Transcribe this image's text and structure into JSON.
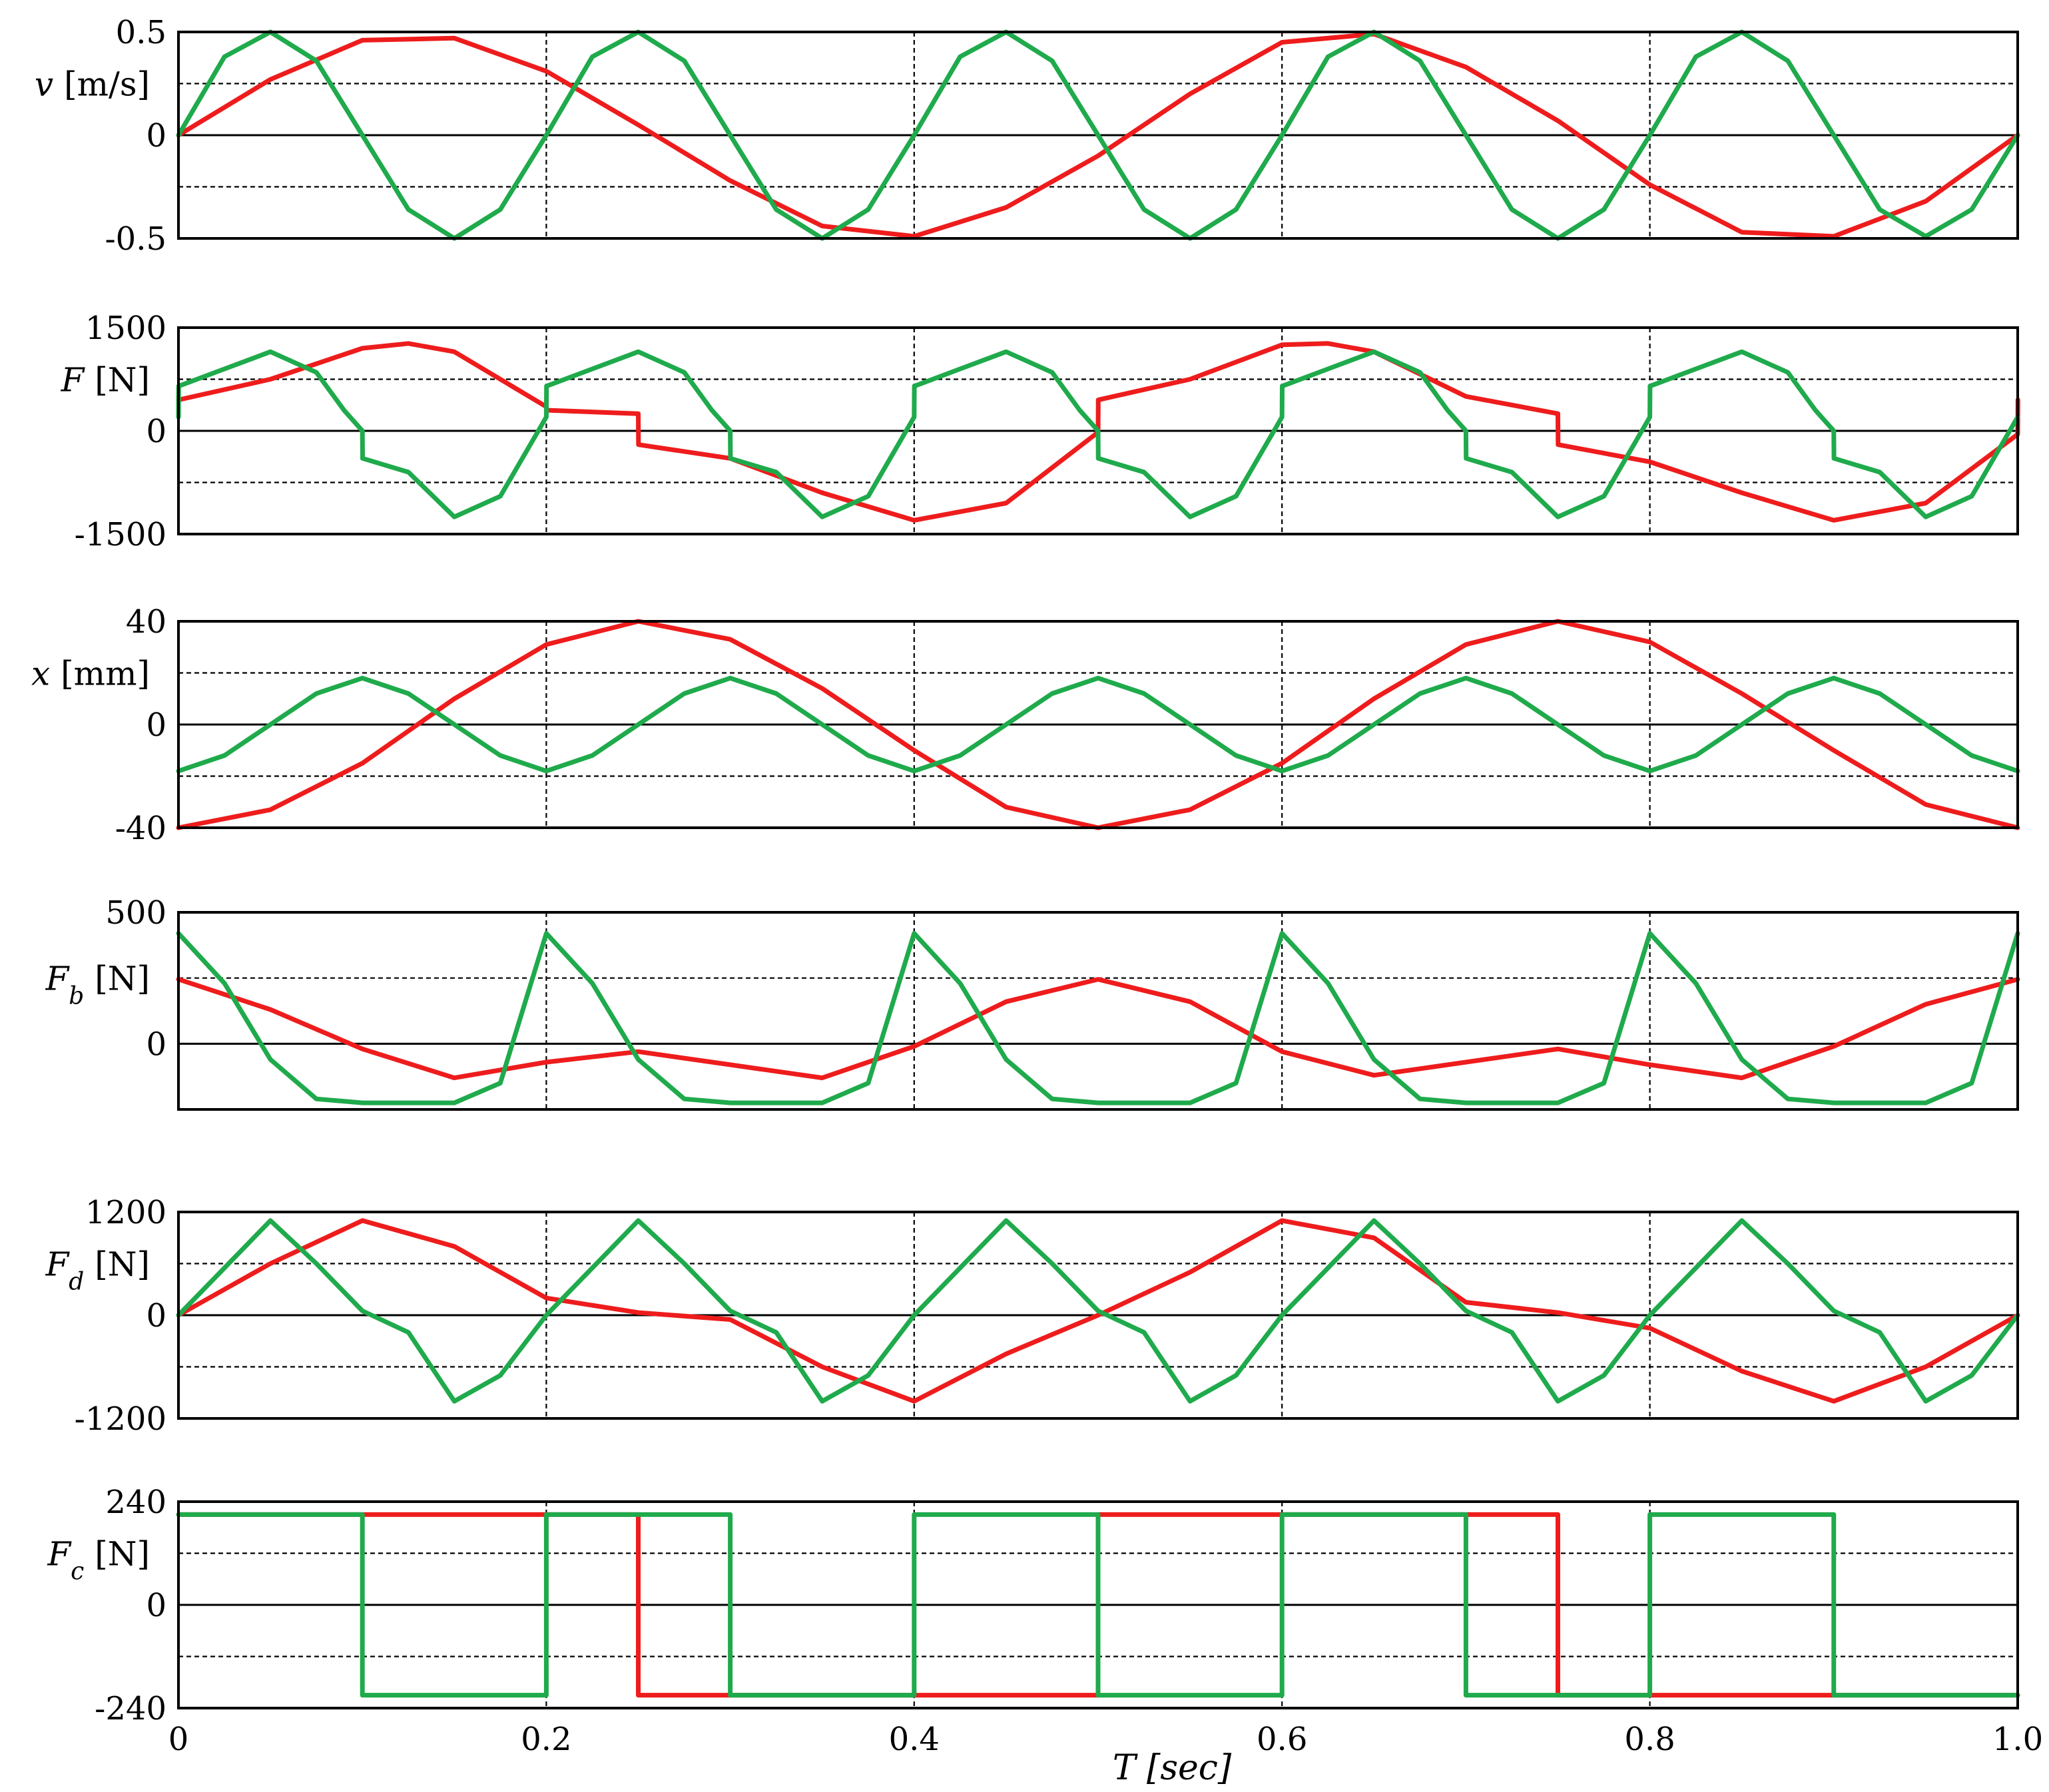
{
  "chart_data": [
    {
      "type": "line",
      "id": "v",
      "ylabel_var": "v",
      "ylabel_sub": "",
      "ylabel_unit": "[m/s]",
      "ylim": [
        -0.5,
        0.5
      ],
      "ytick_labels": [
        "0.5",
        "0",
        "-0.5"
      ],
      "ytick_values": [
        0.5,
        0,
        -0.5
      ],
      "dashed_levels": [
        0.25,
        -0.25
      ],
      "series": [
        {
          "color": "#ee1c1c",
          "x": [
            0,
            0.05,
            0.1,
            0.15,
            0.2,
            0.25,
            0.3,
            0.35,
            0.4,
            0.45,
            0.5,
            0.55,
            0.6,
            0.65,
            0.7,
            0.75,
            0.8,
            0.85,
            0.9,
            0.95,
            1.0
          ],
          "y": [
            0,
            0.27,
            0.46,
            0.47,
            0.31,
            0.05,
            -0.22,
            -0.44,
            -0.49,
            -0.35,
            -0.1,
            0.2,
            0.45,
            0.49,
            0.33,
            0.07,
            -0.24,
            -0.47,
            -0.49,
            -0.32,
            0
          ]
        },
        {
          "color": "#1faa4c",
          "x": [
            0,
            0.025,
            0.05,
            0.075,
            0.1,
            0.125,
            0.15,
            0.175,
            0.2,
            0.225,
            0.25,
            0.275,
            0.3,
            0.325,
            0.35,
            0.375,
            0.4,
            0.425,
            0.45,
            0.475,
            0.5,
            0.525,
            0.55,
            0.575,
            0.6,
            0.625,
            0.65,
            0.675,
            0.7,
            0.725,
            0.75,
            0.775,
            0.8,
            0.825,
            0.85,
            0.875,
            0.9,
            0.925,
            0.95,
            0.975,
            1.0
          ],
          "y": [
            0,
            0.38,
            0.5,
            0.36,
            0,
            -0.36,
            -0.5,
            -0.36,
            0,
            0.38,
            0.5,
            0.36,
            0,
            -0.36,
            -0.5,
            -0.36,
            0,
            0.38,
            0.5,
            0.36,
            0,
            -0.36,
            -0.5,
            -0.36,
            0,
            0.38,
            0.5,
            0.36,
            0,
            -0.36,
            -0.5,
            -0.36,
            0,
            0.38,
            0.5,
            0.36,
            0,
            -0.36,
            -0.49,
            -0.36,
            0
          ]
        }
      ]
    },
    {
      "type": "line",
      "id": "F",
      "ylabel_var": "F",
      "ylabel_sub": "",
      "ylabel_unit": "[N]",
      "ylim": [
        -1500,
        1500
      ],
      "ytick_labels": [
        "1500",
        "0",
        "-1500"
      ],
      "ytick_values": [
        1500,
        0,
        -1500
      ],
      "dashed_levels": [
        750,
        -750
      ],
      "series": [
        {
          "color": "#ee1c1c",
          "x": [
            0,
            0.05,
            0.1,
            0.125,
            0.15,
            0.2,
            0.2001,
            0.25,
            0.2501,
            0.3,
            0.35,
            0.4,
            0.45,
            0.5,
            0.5001,
            0.55,
            0.6,
            0.625,
            0.65,
            0.7,
            0.75,
            0.7501,
            0.8,
            0.85,
            0.9,
            0.95,
            1.0,
            1.0001
          ],
          "y": [
            450,
            750,
            1200,
            1270,
            1150,
            350,
            300,
            250,
            -200,
            -400,
            -900,
            -1300,
            -1050,
            -20,
            450,
            750,
            1250,
            1270,
            1150,
            500,
            250,
            -200,
            -450,
            -900,
            -1300,
            -1050,
            -50,
            450
          ]
        },
        {
          "color": "#1faa4c",
          "x": [
            0,
            0.0001,
            0.025,
            0.05,
            0.075,
            0.09,
            0.1,
            0.1001,
            0.125,
            0.15,
            0.175,
            0.2,
            0.2001,
            0.225,
            0.25,
            0.275,
            0.29,
            0.3,
            0.3001,
            0.325,
            0.35,
            0.375,
            0.4,
            0.4001,
            0.425,
            0.45,
            0.475,
            0.49,
            0.5,
            0.5001,
            0.525,
            0.55,
            0.575,
            0.6,
            0.6001,
            0.625,
            0.65,
            0.675,
            0.69,
            0.7,
            0.7001,
            0.725,
            0.75,
            0.775,
            0.8,
            0.8001,
            0.825,
            0.85,
            0.875,
            0.89,
            0.9,
            0.9001,
            0.925,
            0.95,
            0.975,
            1.0
          ],
          "y": [
            200,
            650,
            900,
            1150,
            850,
            300,
            0,
            -400,
            -600,
            -1250,
            -950,
            200,
            650,
            900,
            1150,
            850,
            300,
            0,
            -400,
            -600,
            -1250,
            -950,
            200,
            650,
            900,
            1150,
            850,
            300,
            0,
            -400,
            -600,
            -1250,
            -950,
            200,
            650,
            900,
            1150,
            850,
            300,
            0,
            -400,
            -600,
            -1250,
            -950,
            200,
            650,
            900,
            1150,
            850,
            300,
            0,
            -400,
            -600,
            -1250,
            -950,
            200
          ]
        }
      ]
    },
    {
      "type": "line",
      "id": "x",
      "ylabel_var": "x",
      "ylabel_sub": "",
      "ylabel_unit": "[mm]",
      "ylim": [
        -40,
        40
      ],
      "ytick_labels": [
        "40",
        "0",
        "-40"
      ],
      "ytick_values": [
        40,
        0,
        -40
      ],
      "dashed_levels": [
        20,
        -20
      ],
      "series": [
        {
          "color": "#ee1c1c",
          "x": [
            0,
            0.05,
            0.1,
            0.15,
            0.2,
            0.25,
            0.3,
            0.35,
            0.4,
            0.45,
            0.5,
            0.55,
            0.6,
            0.65,
            0.7,
            0.75,
            0.8,
            0.85,
            0.9,
            0.95,
            1.0
          ],
          "y": [
            -40,
            -33,
            -15,
            10,
            31,
            40,
            33,
            14,
            -10,
            -32,
            -40,
            -33,
            -15,
            10,
            31,
            40,
            32,
            12,
            -10,
            -31,
            -40
          ]
        },
        {
          "color": "#1faa4c",
          "x": [
            0,
            0.025,
            0.05,
            0.075,
            0.1,
            0.125,
            0.15,
            0.175,
            0.2,
            0.225,
            0.25,
            0.275,
            0.3,
            0.325,
            0.35,
            0.375,
            0.4,
            0.425,
            0.45,
            0.475,
            0.5,
            0.525,
            0.55,
            0.575,
            0.6,
            0.625,
            0.65,
            0.675,
            0.7,
            0.725,
            0.75,
            0.775,
            0.8,
            0.825,
            0.85,
            0.875,
            0.9,
            0.925,
            0.95,
            0.975,
            1.0
          ],
          "y": [
            -18,
            -12,
            0,
            12,
            18,
            12,
            0,
            -12,
            -18,
            -12,
            0,
            12,
            18,
            12,
            0,
            -12,
            -18,
            -12,
            0,
            12,
            18,
            12,
            0,
            -12,
            -18,
            -12,
            0,
            12,
            18,
            12,
            0,
            -12,
            -18,
            -12,
            0,
            12,
            18,
            12,
            0,
            -12,
            -18
          ]
        }
      ]
    },
    {
      "type": "line",
      "id": "Fb",
      "ylabel_var": "F",
      "ylabel_sub": "b",
      "ylabel_unit": "[N]",
      "ylim": [
        -250,
        500
      ],
      "ytick_labels": [
        "500",
        "0"
      ],
      "ytick_values": [
        500,
        0
      ],
      "dashed_levels": [
        250
      ],
      "series": [
        {
          "color": "#ee1c1c",
          "x": [
            0,
            0.05,
            0.1,
            0.15,
            0.2,
            0.25,
            0.3,
            0.35,
            0.4,
            0.45,
            0.5,
            0.55,
            0.6,
            0.65,
            0.7,
            0.75,
            0.8,
            0.85,
            0.9,
            0.95,
            1.0
          ],
          "y": [
            245,
            130,
            -20,
            -130,
            -70,
            -30,
            -80,
            -130,
            -10,
            160,
            245,
            160,
            -30,
            -120,
            -70,
            -20,
            -80,
            -130,
            -10,
            150,
            245
          ]
        },
        {
          "color": "#1faa4c",
          "x": [
            0,
            0.025,
            0.05,
            0.075,
            0.1,
            0.125,
            0.15,
            0.175,
            0.2,
            0.225,
            0.25,
            0.275,
            0.3,
            0.325,
            0.35,
            0.375,
            0.4,
            0.425,
            0.45,
            0.475,
            0.5,
            0.525,
            0.55,
            0.575,
            0.6,
            0.625,
            0.65,
            0.675,
            0.7,
            0.725,
            0.75,
            0.775,
            0.8,
            0.825,
            0.85,
            0.875,
            0.9,
            0.925,
            0.95,
            0.975,
            1.0
          ],
          "y": [
            420,
            230,
            -60,
            -210,
            -225,
            -225,
            -225,
            -150,
            420,
            230,
            -60,
            -210,
            -225,
            -225,
            -225,
            -150,
            420,
            230,
            -60,
            -210,
            -225,
            -225,
            -225,
            -150,
            420,
            230,
            -60,
            -210,
            -225,
            -225,
            -225,
            -150,
            420,
            230,
            -60,
            -210,
            -225,
            -225,
            -225,
            -150,
            420
          ]
        }
      ]
    },
    {
      "type": "line",
      "id": "Fd",
      "ylabel_var": "F",
      "ylabel_sub": "d",
      "ylabel_unit": "[N]",
      "ylim": [
        -1200,
        1200
      ],
      "ytick_labels": [
        "1200",
        "0",
        "-1200"
      ],
      "ytick_values": [
        1200,
        0,
        -1200
      ],
      "dashed_levels": [
        600,
        -600
      ],
      "series": [
        {
          "color": "#ee1c1c",
          "x": [
            0,
            0.05,
            0.1,
            0.15,
            0.2,
            0.25,
            0.3,
            0.35,
            0.4,
            0.45,
            0.5,
            0.55,
            0.6,
            0.65,
            0.7,
            0.75,
            0.8,
            0.85,
            0.9,
            0.95,
            1.0
          ],
          "y": [
            0,
            600,
            1100,
            800,
            200,
            30,
            -50,
            -600,
            -1000,
            -450,
            0,
            500,
            1100,
            900,
            150,
            30,
            -150,
            -650,
            -1000,
            -600,
            0
          ]
        },
        {
          "color": "#1faa4c",
          "x": [
            0,
            0.025,
            0.05,
            0.075,
            0.1,
            0.125,
            0.15,
            0.175,
            0.2,
            0.225,
            0.25,
            0.275,
            0.3,
            0.325,
            0.35,
            0.375,
            0.4,
            0.425,
            0.45,
            0.475,
            0.5,
            0.525,
            0.55,
            0.575,
            0.6,
            0.625,
            0.65,
            0.675,
            0.7,
            0.725,
            0.75,
            0.775,
            0.8,
            0.825,
            0.85,
            0.875,
            0.9,
            0.925,
            0.95,
            0.975,
            1.0
          ],
          "y": [
            0,
            550,
            1100,
            600,
            50,
            -200,
            -1000,
            -700,
            0,
            550,
            1100,
            600,
            50,
            -200,
            -1000,
            -700,
            0,
            550,
            1100,
            600,
            50,
            -200,
            -1000,
            -700,
            0,
            550,
            1100,
            600,
            50,
            -200,
            -1000,
            -700,
            0,
            550,
            1100,
            600,
            50,
            -200,
            -1000,
            -700,
            0
          ]
        }
      ]
    },
    {
      "type": "line",
      "id": "Fc",
      "ylabel_var": "F",
      "ylabel_sub": "c",
      "ylabel_unit": "[N]",
      "ylim": [
        -240,
        240
      ],
      "ytick_labels": [
        "240",
        "0",
        "-240"
      ],
      "ytick_values": [
        240,
        0,
        -240
      ],
      "dashed_levels": [
        120,
        -120
      ],
      "xlabel_var": "T",
      "xlabel_unit": "[sec]",
      "xtick_labels": [
        "0",
        "0.2",
        "0.4",
        "0.6",
        "0.8",
        "1.0"
      ],
      "xtick_values": [
        0,
        0.2,
        0.4,
        0.6,
        0.8,
        1.0
      ],
      "series": [
        {
          "color": "#ee1c1c",
          "x": [
            0,
            0.25,
            0.25,
            0.5,
            0.5,
            0.75,
            0.75,
            1.0
          ],
          "y": [
            210,
            210,
            -210,
            -210,
            210,
            210,
            -210,
            -210
          ]
        },
        {
          "color": "#1faa4c",
          "x": [
            0,
            0.1,
            0.1,
            0.2,
            0.2,
            0.3,
            0.3,
            0.4,
            0.4,
            0.5,
            0.5,
            0.6,
            0.6,
            0.7,
            0.7,
            0.8,
            0.8,
            0.9,
            0.9,
            1.0
          ],
          "y": [
            210,
            210,
            -210,
            -210,
            210,
            210,
            -210,
            -210,
            210,
            210,
            -210,
            -210,
            210,
            210,
            -210,
            -210,
            210,
            210,
            -210,
            -210
          ]
        }
      ]
    }
  ],
  "shared_xlim": [
    0,
    1.0
  ],
  "vertical_grid_x": [
    0.2,
    0.4,
    0.6,
    0.8
  ]
}
